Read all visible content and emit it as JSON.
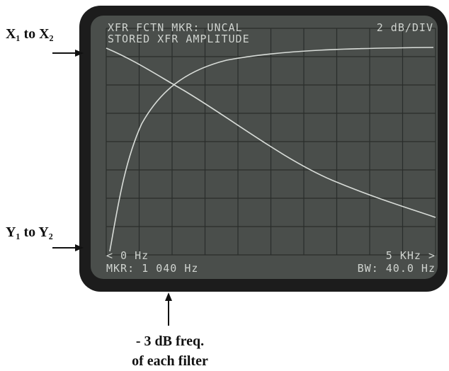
{
  "annotations": {
    "top_left": "X₁ to X₂",
    "bottom_left": "Y₁ to Y₂",
    "bottom_line1": "- 3 dB freq.",
    "bottom_line2": "of each filter"
  },
  "screen": {
    "header_left": "XFR FCTN MKR: UNCAL",
    "header_right": "2 dB/DIV",
    "subtitle": "STORED XFR AMPLITUDE",
    "start": "< 0 Hz",
    "stop": "5 KHz >",
    "marker": "MKR: 1 040 Hz",
    "bandwidth": "BW: 40.0 Hz"
  }
}
